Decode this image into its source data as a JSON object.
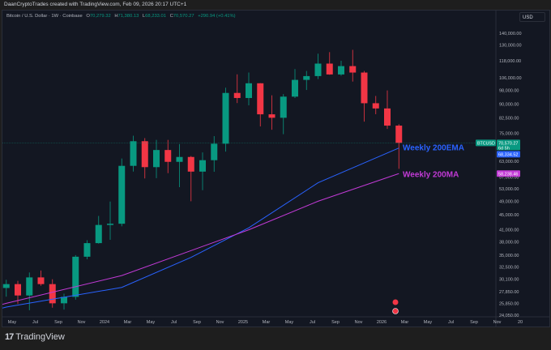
{
  "header": {
    "attribution": "DaanCryptoTrades created with TradingView.com, Feb 09, 2026 20:17 UTC+1"
  },
  "legend": {
    "symbol": "Bitcoin / U.S. Dollar · 1W · Coinbase",
    "o_label": "O",
    "o": "70,279.32",
    "h_label": "H",
    "h": "71,380.13",
    "l_label": "L",
    "l": "68,233.01",
    "c_label": "C",
    "c": "70,570.27",
    "change": "+290.94 (+0.41%)"
  },
  "currency_button": "USD",
  "footer": {
    "logo_text": "TradingView"
  },
  "colors": {
    "up": "#089981",
    "down": "#f23645",
    "ema": "#2962ff",
    "ma": "#c23ad6",
    "background": "#131722"
  },
  "chart_data": {
    "type": "candlestick",
    "scale": "log",
    "ylim": [
      24050,
      145000
    ],
    "y_ticks": [
      "140,000.00",
      "130,000.00",
      "118,000.00",
      "106,000.00",
      "98,000.00",
      "90,000.00",
      "82,500.00",
      "75,000.00",
      "63,000.00",
      "57,000.00",
      "53,000.00",
      "49,000.00",
      "45,000.00",
      "41,000.00",
      "38,000.00",
      "35,000.00",
      "32,500.00",
      "30,100.00",
      "27,850.00",
      "25,850.00",
      "24,050.00"
    ],
    "y_tick_values": [
      140000,
      130000,
      118000,
      106000,
      98000,
      90000,
      82500,
      75000,
      63000,
      57000,
      53000,
      49000,
      45000,
      41000,
      38000,
      35000,
      32500,
      30100,
      27850,
      25850,
      24050
    ],
    "x_ticks": [
      {
        "label": "May",
        "date": "2023-05"
      },
      {
        "label": "Jul",
        "date": "2023-07"
      },
      {
        "label": "Sep",
        "date": "2023-09"
      },
      {
        "label": "Nov",
        "date": "2023-11"
      },
      {
        "label": "2024",
        "date": "2024-01"
      },
      {
        "label": "Mar",
        "date": "2024-03"
      },
      {
        "label": "May",
        "date": "2024-05"
      },
      {
        "label": "Jul",
        "date": "2024-07"
      },
      {
        "label": "Sep",
        "date": "2024-09"
      },
      {
        "label": "Nov",
        "date": "2024-11"
      },
      {
        "label": "2025",
        "date": "2025-01"
      },
      {
        "label": "Mar",
        "date": "2025-03"
      },
      {
        "label": "May",
        "date": "2025-05"
      },
      {
        "label": "Jul",
        "date": "2025-07"
      },
      {
        "label": "Sep",
        "date": "2025-09"
      },
      {
        "label": "Nov",
        "date": "2025-11"
      },
      {
        "label": "2026",
        "date": "2026-01"
      },
      {
        "label": "Mar",
        "date": "2026-03"
      },
      {
        "label": "May",
        "date": "2026-05"
      },
      {
        "label": "Jul",
        "date": "2026-07"
      },
      {
        "label": "Sep",
        "date": "2026-09"
      },
      {
        "label": "Nov",
        "date": "2026-11"
      },
      {
        "label": "20",
        "date": "2027-01"
      }
    ],
    "candles": [
      {
        "date": "2023-04",
        "o": 28500,
        "h": 30000,
        "l": 27000,
        "c": 29200
      },
      {
        "date": "2023-05",
        "o": 29200,
        "h": 29800,
        "l": 25800,
        "c": 27200
      },
      {
        "date": "2023-06",
        "o": 27200,
        "h": 31400,
        "l": 24800,
        "c": 30450
      },
      {
        "date": "2023-07",
        "o": 30450,
        "h": 31800,
        "l": 28900,
        "c": 29200
      },
      {
        "date": "2023-08",
        "o": 29200,
        "h": 30100,
        "l": 25200,
        "c": 25900
      },
      {
        "date": "2023-09",
        "o": 25900,
        "h": 27500,
        "l": 24900,
        "c": 26960
      },
      {
        "date": "2023-10",
        "o": 26960,
        "h": 35000,
        "l": 26500,
        "c": 34650
      },
      {
        "date": "2023-11",
        "o": 34650,
        "h": 38400,
        "l": 34100,
        "c": 37720
      },
      {
        "date": "2023-12",
        "o": 37720,
        "h": 44700,
        "l": 37600,
        "c": 42260
      },
      {
        "date": "2024-01",
        "o": 42260,
        "h": 48900,
        "l": 38500,
        "c": 42580
      },
      {
        "date": "2024-02",
        "o": 42580,
        "h": 64000,
        "l": 41900,
        "c": 61130
      },
      {
        "date": "2024-03",
        "o": 61130,
        "h": 73800,
        "l": 59000,
        "c": 71300
      },
      {
        "date": "2024-04",
        "o": 71300,
        "h": 72700,
        "l": 56500,
        "c": 60640
      },
      {
        "date": "2024-05",
        "o": 60640,
        "h": 71900,
        "l": 56600,
        "c": 67490
      },
      {
        "date": "2024-06",
        "o": 67490,
        "h": 71900,
        "l": 58400,
        "c": 62680
      },
      {
        "date": "2024-07",
        "o": 62680,
        "h": 70000,
        "l": 53500,
        "c": 64620
      },
      {
        "date": "2024-08",
        "o": 64620,
        "h": 65000,
        "l": 49000,
        "c": 58970
      },
      {
        "date": "2024-09",
        "o": 58970,
        "h": 66500,
        "l": 52500,
        "c": 63330
      },
      {
        "date": "2024-10",
        "o": 63330,
        "h": 73600,
        "l": 58900,
        "c": 70200
      },
      {
        "date": "2024-11",
        "o": 70200,
        "h": 99600,
        "l": 66800,
        "c": 96400
      },
      {
        "date": "2024-12",
        "o": 96400,
        "h": 108300,
        "l": 90500,
        "c": 93400
      },
      {
        "date": "2025-01",
        "o": 93400,
        "h": 109500,
        "l": 89200,
        "c": 102400
      },
      {
        "date": "2025-02",
        "o": 102400,
        "h": 102500,
        "l": 78200,
        "c": 84350
      },
      {
        "date": "2025-03",
        "o": 84350,
        "h": 95000,
        "l": 76600,
        "c": 82550
      },
      {
        "date": "2025-04",
        "o": 82550,
        "h": 95700,
        "l": 74500,
        "c": 94200
      },
      {
        "date": "2025-05",
        "o": 94200,
        "h": 111900,
        "l": 93400,
        "c": 104600
      },
      {
        "date": "2025-06",
        "o": 104600,
        "h": 110600,
        "l": 98200,
        "c": 107100
      },
      {
        "date": "2025-07",
        "o": 107100,
        "h": 123200,
        "l": 105100,
        "c": 115800
      },
      {
        "date": "2025-08",
        "o": 115800,
        "h": 124400,
        "l": 108000,
        "c": 108200
      },
      {
        "date": "2025-09",
        "o": 108200,
        "h": 117900,
        "l": 107300,
        "c": 114000
      },
      {
        "date": "2025-10",
        "o": 114000,
        "h": 126200,
        "l": 103500,
        "c": 109500
      },
      {
        "date": "2025-11",
        "o": 109500,
        "h": 110600,
        "l": 80600,
        "c": 90400
      },
      {
        "date": "2025-12",
        "o": 90400,
        "h": 94600,
        "l": 84400,
        "c": 87500
      },
      {
        "date": "2026-01",
        "o": 87500,
        "h": 97900,
        "l": 77000,
        "c": 78600
      },
      {
        "date": "2026-02",
        "o": 78600,
        "h": 79300,
        "l": 60000,
        "c": 70570
      }
    ],
    "series": [
      {
        "name": "Weekly 200EMA",
        "points": [
          [
            "2023-04",
            25300
          ],
          [
            "2024-02",
            28600
          ],
          [
            "2024-08",
            34500
          ],
          [
            "2025-01",
            41500
          ],
          [
            "2025-07",
            55000
          ],
          [
            "2026-02",
            68334
          ]
        ]
      },
      {
        "name": "Weekly 200MA",
        "points": [
          [
            "2023-04",
            25900
          ],
          [
            "2024-02",
            30800
          ],
          [
            "2024-08",
            36000
          ],
          [
            "2025-01",
            41000
          ],
          [
            "2025-07",
            49000
          ],
          [
            "2026-02",
            58238
          ]
        ]
      }
    ],
    "price_labels": {
      "symbol_tag": "BTCUSD",
      "last": "70,570.27",
      "countdown": "6d 5h",
      "last_value": 70570.27,
      "ema": "68,334.52",
      "ema_value": 68334.52,
      "ma": "58,238.46",
      "ma_value": 58238.46
    }
  }
}
